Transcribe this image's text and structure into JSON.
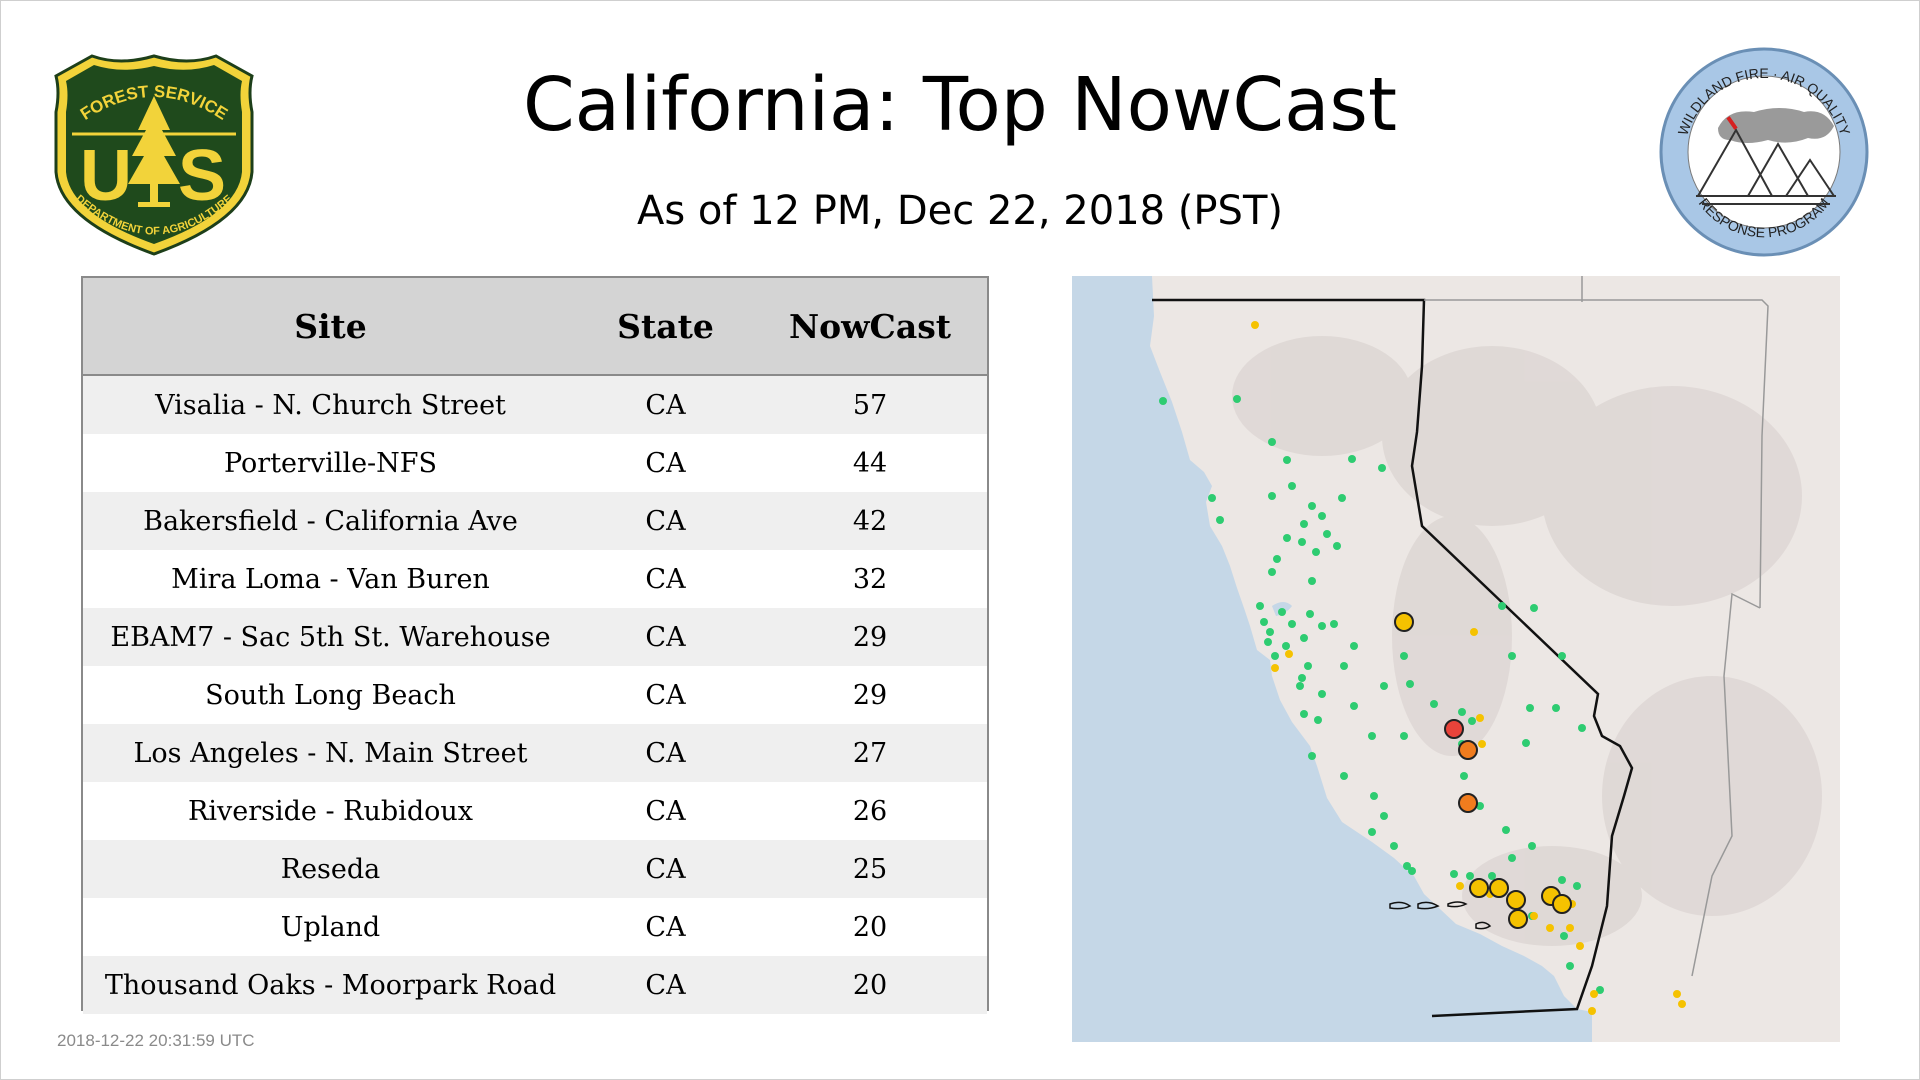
{
  "header": {
    "title": "California: Top NowCast",
    "subtitle": "As of 12 PM, Dec 22, 2018 (PST)"
  },
  "logos": {
    "forest_service": {
      "top_text": "FOREST SERVICE",
      "letters": "US",
      "bottom_text": "DEPARTMENT OF AGRICULTURE"
    },
    "wildland_fire": {
      "top_text": "WILDLAND FIRE · AIR QUALITY",
      "bottom_text": "RESPONSE PROGRAM"
    }
  },
  "table": {
    "columns": [
      "Site",
      "State",
      "NowCast"
    ],
    "rows": [
      [
        "Visalia - N. Church Street",
        "CA",
        "57"
      ],
      [
        "Porterville-NFS",
        "CA",
        "44"
      ],
      [
        "Bakersfield - California Ave",
        "CA",
        "42"
      ],
      [
        "Mira Loma - Van Buren",
        "CA",
        "32"
      ],
      [
        "EBAM7 - Sac 5th St. Warehouse",
        "CA",
        "29"
      ],
      [
        "South Long Beach",
        "CA",
        "29"
      ],
      [
        "Los Angeles - N. Main Street",
        "CA",
        "27"
      ],
      [
        "Riverside - Rubidoux",
        "CA",
        "26"
      ],
      [
        "Reseda",
        "CA",
        "25"
      ],
      [
        "Upland",
        "CA",
        "20"
      ],
      [
        "Thousand Oaks - Moorpark Road",
        "CA",
        "20"
      ]
    ]
  },
  "footer": {
    "timestamp": "2018-12-22 20:31:59 UTC"
  },
  "map": {
    "colors": {
      "ocean": "#c3d6e6",
      "land": "#ebe6e4",
      "good": "#2ecc71",
      "moderate": "#f5c200",
      "usg": "#f07c1e",
      "unhealthy": "#e8433a"
    }
  }
}
